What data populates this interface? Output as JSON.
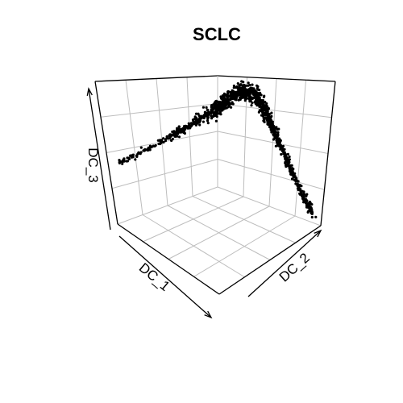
{
  "chart_data": {
    "type": "scatter",
    "title": "SCLC",
    "projection": "3d",
    "xlabel": "DC_1",
    "ylabel": "DC_2",
    "zlabel": "DC_3",
    "grid": true,
    "legend": "none",
    "tick_labels": false,
    "point_color": "#000000",
    "xlim": [
      0,
      1
    ],
    "ylim": [
      0,
      1
    ],
    "zlim": [
      0,
      1
    ],
    "description_of_shape": "dense curved trajectory: branch from low DC_1 rising to a peak, then descending toward high DC_2 and low DC_3",
    "trajectory": [
      {
        "x": 0.0,
        "y": 0.02,
        "z": 0.55
      },
      {
        "x": 0.1,
        "y": 0.05,
        "z": 0.58
      },
      {
        "x": 0.25,
        "y": 0.08,
        "z": 0.62
      },
      {
        "x": 0.4,
        "y": 0.12,
        "z": 0.68
      },
      {
        "x": 0.55,
        "y": 0.16,
        "z": 0.74
      },
      {
        "x": 0.68,
        "y": 0.22,
        "z": 0.83
      },
      {
        "x": 0.8,
        "y": 0.28,
        "z": 0.92
      },
      {
        "x": 0.9,
        "y": 0.34,
        "z": 1.0
      },
      {
        "x": 0.95,
        "y": 0.42,
        "z": 0.97
      },
      {
        "x": 0.97,
        "y": 0.52,
        "z": 0.8
      },
      {
        "x": 0.98,
        "y": 0.62,
        "z": 0.6
      },
      {
        "x": 0.99,
        "y": 0.72,
        "z": 0.4
      },
      {
        "x": 1.0,
        "y": 0.82,
        "z": 0.22
      },
      {
        "x": 1.0,
        "y": 0.92,
        "z": 0.08
      }
    ]
  }
}
